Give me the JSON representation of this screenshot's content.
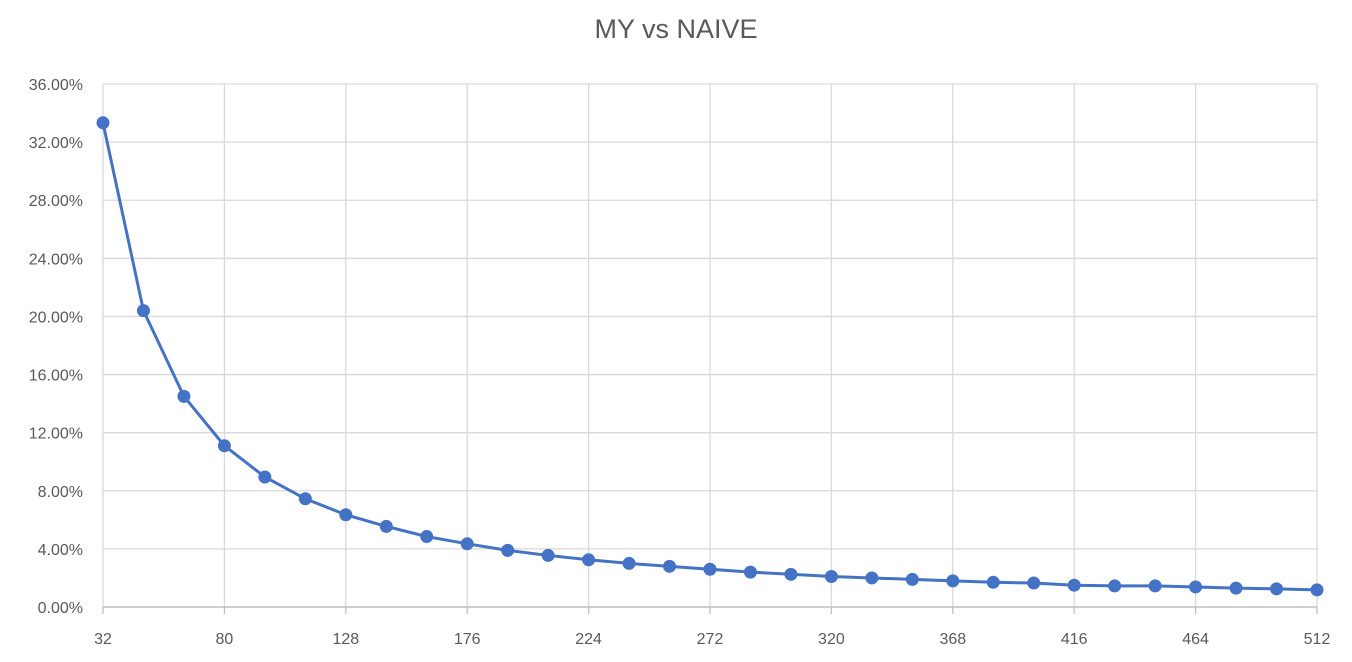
{
  "chart_data": {
    "type": "line",
    "title": "MY vs NAIVE",
    "xlabel": "",
    "ylabel": "",
    "x": [
      32,
      48,
      64,
      80,
      96,
      112,
      128,
      144,
      160,
      176,
      192,
      208,
      224,
      240,
      256,
      272,
      288,
      304,
      320,
      336,
      352,
      368,
      384,
      400,
      416,
      432,
      448,
      464,
      480,
      496,
      512
    ],
    "series": [
      {
        "name": "",
        "color": "#4472C4",
        "values": [
          33.33,
          20.4,
          14.5,
          11.1,
          8.95,
          7.45,
          6.35,
          5.55,
          4.85,
          4.35,
          3.9,
          3.55,
          3.25,
          3.0,
          2.8,
          2.6,
          2.4,
          2.25,
          2.1,
          2.0,
          1.9,
          1.8,
          1.7,
          1.65,
          1.5,
          1.45,
          1.45,
          1.38,
          1.3,
          1.25,
          1.18
        ]
      }
    ],
    "xlim": [
      32,
      512
    ],
    "ylim": [
      0,
      36
    ],
    "x_ticks": [
      "32",
      "80",
      "128",
      "176",
      "224",
      "272",
      "320",
      "368",
      "416",
      "464",
      "512"
    ],
    "y_ticks": [
      "0.00%",
      "4.00%",
      "8.00%",
      "12.00%",
      "16.00%",
      "20.00%",
      "24.00%",
      "28.00%",
      "32.00%",
      "36.00%"
    ],
    "grid": true,
    "legend": "none"
  }
}
